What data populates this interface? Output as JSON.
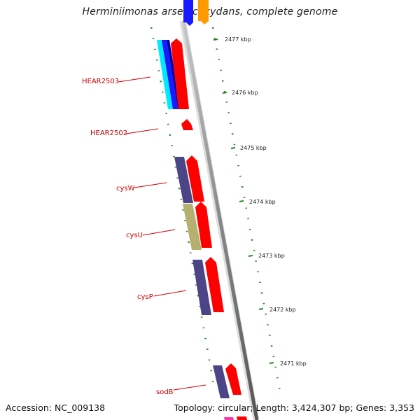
{
  "title": "Herminiimonas arsenicoxydans, complete genome",
  "footer": {
    "accession": "Accession: NC_009138",
    "topology": "Topology: circular; Length: 3,424,307 bp; Genes: 3,353"
  },
  "kbp_labels": [
    "2477 kbp",
    "2476 kbp",
    "2475 kbp",
    "2474 kbp",
    "2473 kbp",
    "2472 kbp",
    "2471 kbp"
  ],
  "gene_labels": [
    "HEAR2503",
    "HEAR2502",
    "cysW",
    "cysU",
    "cysP",
    "sodB"
  ],
  "colors": {
    "gene_red": "#ff0000",
    "backbone": "#888888",
    "ticks": "#228822",
    "label_red": "#cc0000",
    "cog_purple": "#4b4588",
    "cog_olive": "#b5b070",
    "cog_cyan": "#00eaff",
    "cog_blue": "#1a1aff",
    "cog_orange": "#ff9a00",
    "cog_pink": "#ff33aa"
  }
}
